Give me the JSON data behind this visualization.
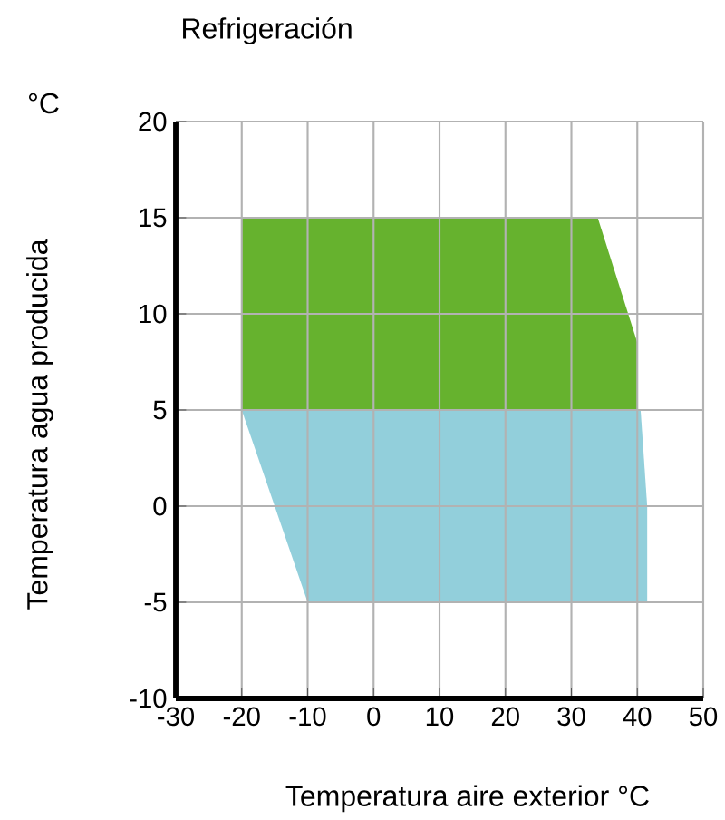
{
  "chart_data": {
    "type": "area",
    "title": "Refrigeración",
    "xlabel": "Temperatura aire exterior °C",
    "ylabel": "Temperatura agua producida",
    "annotations": [
      "°C"
    ],
    "series": [
      {
        "color": "#66b22e",
        "x": [
          -20,
          34,
          40,
          40,
          -20
        ],
        "values": [
          15,
          15,
          8.5,
          5,
          5
        ]
      },
      {
        "color": "#92cfdb",
        "x": [
          -20,
          40.5,
          41.5,
          41.5,
          -10
        ],
        "values": [
          5,
          5,
          0,
          -5,
          -5
        ]
      }
    ],
    "xlim": [
      -30,
      50
    ],
    "xticks": [
      -30,
      -20,
      -10,
      0,
      10,
      20,
      30,
      40,
      50
    ],
    "ylim": [
      -10,
      20
    ],
    "yticks": [
      -10,
      -5,
      0,
      5,
      10,
      15,
      20
    ],
    "grid": true
  }
}
